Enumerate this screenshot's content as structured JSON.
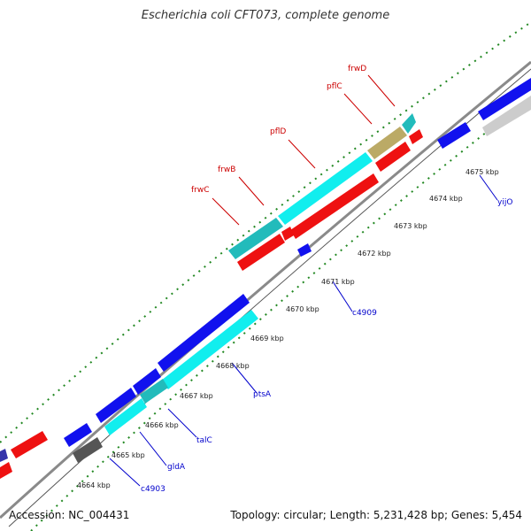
{
  "header": {
    "title": "Escherichia coli CFT073, complete genome"
  },
  "footer": {
    "accession": "Accession: NC_004431",
    "summary": "Topology: circular; Length: 5,231,428 bp; Genes: 5,454"
  },
  "colors": {
    "red": "#ee1111",
    "blue": "#1111ee",
    "cyan": "#11eeee",
    "teal": "#22bbbb",
    "olive": "#bbaa66",
    "grey": "#cccccc",
    "darkgrey": "#555555",
    "label_red": "#cc0000",
    "label_blue": "#0000cc",
    "ruler_green": "#228822",
    "backbone": "#888888"
  },
  "ticks": [
    "4664 kbp",
    "4665 kbp",
    "4666 kbp",
    "4667 kbp",
    "4668 kbp",
    "4669 kbp",
    "4670 kbp",
    "4671 kbp",
    "4672 kbp",
    "4673 kbp",
    "4674 kbp",
    "4675 kbp"
  ],
  "gene_labels_top": [
    "frwC",
    "frwB",
    "pflD",
    "pflC",
    "frwD"
  ],
  "gene_labels_bottom": [
    "c4903",
    "gldA",
    "talC",
    "ptsA",
    "c4909",
    "yijO"
  ]
}
